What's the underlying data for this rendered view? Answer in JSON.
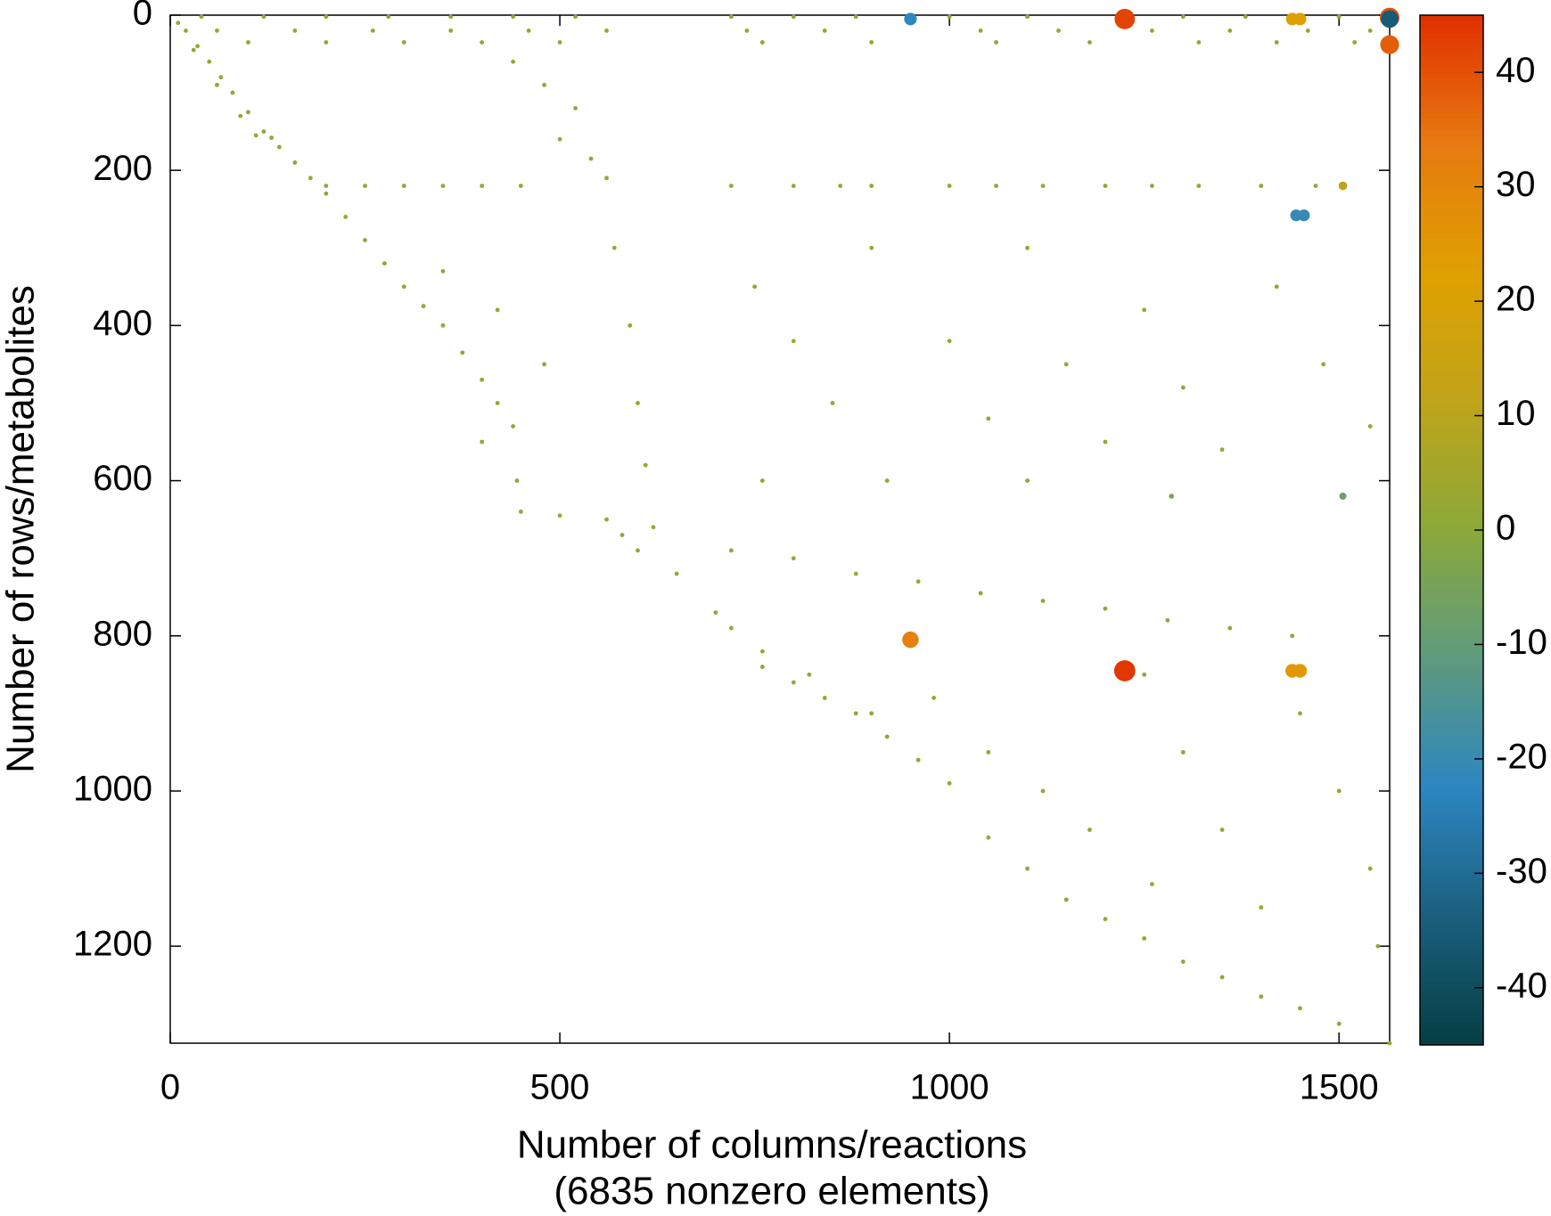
{
  "chart_data": {
    "type": "scatter",
    "xlabel": [
      "Number of columns/reactions",
      "(6835 nonzero elements)"
    ],
    "ylabel": "Number of rows/metabolites",
    "xlim": [
      0,
      1565
    ],
    "ylim": [
      1325,
      0
    ],
    "xticks": [
      0,
      500,
      1000,
      1500
    ],
    "yticks": [
      0,
      200,
      400,
      600,
      800,
      1000,
      1200
    ],
    "clim": [
      -45,
      45
    ],
    "cticks": [
      -40,
      -30,
      -20,
      -10,
      0,
      10,
      20,
      30,
      40
    ],
    "colormap": [
      "#063f44",
      "#1b5f7c",
      "#2c86c2",
      "#5e9a7e",
      "#8aa93a",
      "#c0a41a",
      "#e0a000",
      "#e77a10",
      "#e03000"
    ],
    "x": [
      20,
      50,
      80,
      120,
      160,
      200,
      250,
      300,
      350,
      400,
      440,
      450,
      560,
      580,
      650,
      720,
      800,
      880,
      960,
      1050,
      1150,
      1250,
      1350,
      1450,
      1565,
      10,
      35,
      65,
      100,
      140,
      180,
      225,
      275,
      325,
      375,
      420,
      445,
      500,
      600,
      700,
      760,
      840,
      920,
      1000,
      1100,
      1200,
      1300,
      1400,
      1500,
      30,
      60,
      90,
      110,
      130,
      40,
      120,
      200,
      280,
      360,
      440,
      520,
      60,
      160,
      260,
      360,
      460,
      560,
      100,
      200,
      300,
      400,
      500,
      720,
      800,
      880,
      1000,
      1100,
      1300,
      1380,
      1500,
      740,
      840,
      1040,
      1140,
      1260,
      1360,
      1460,
      1540,
      760,
      900,
      1060,
      1180,
      1320,
      1420,
      1520,
      440,
      480,
      520,
      500,
      540,
      560,
      570,
      590,
      600,
      610,
      620,
      200,
      250,
      300,
      350,
      400,
      450,
      720,
      800,
      860,
      900,
      1000,
      1060,
      1120,
      1200,
      1260,
      1320,
      1400,
      1470,
      300,
      350,
      420,
      480,
      400,
      750,
      800,
      850,
      900,
      920,
      1000,
      1050,
      1100,
      1150,
      1200,
      1250,
      1300,
      1350,
      1420,
      1480,
      1540,
      760,
      1100,
      720,
      800,
      880,
      960,
      1040,
      1120,
      1200,
      1280,
      1360,
      1440,
      760,
      820,
      900,
      980,
      1050,
      1120,
      1180,
      1250,
      1300,
      1350,
      1400,
      1450,
      1500,
      1540,
      1550,
      1260,
      950,
      1225,
      1440,
      1450,
      1565,
      1565,
      1565,
      1445,
      1455,
      950,
      1225,
      1440,
      1450,
      1285,
      1505,
      1505
    ],
    "y": [
      20,
      60,
      100,
      150,
      190,
      230,
      290,
      350,
      400,
      470,
      530,
      640,
      650,
      670,
      720,
      790,
      860,
      900,
      960,
      1060,
      1140,
      1190,
      1240,
      1280,
      1325,
      10,
      40,
      80,
      125,
      170,
      210,
      260,
      320,
      375,
      435,
      500,
      600,
      645,
      690,
      770,
      840,
      880,
      930,
      990,
      1100,
      1165,
      1220,
      1265,
      1300,
      45,
      90,
      130,
      155,
      158,
      2,
      2,
      2,
      2,
      2,
      2,
      2,
      20,
      20,
      20,
      20,
      20,
      20,
      35,
      35,
      35,
      35,
      35,
      2,
      2,
      2,
      2,
      2,
      2,
      2,
      2,
      20,
      20,
      20,
      20,
      20,
      20,
      20,
      20,
      35,
      35,
      35,
      35,
      35,
      35,
      35,
      60,
      90,
      120,
      160,
      185,
      210,
      300,
      400,
      500,
      580,
      660,
      220,
      220,
      220,
      220,
      220,
      220,
      220,
      220,
      220,
      220,
      220,
      220,
      220,
      220,
      220,
      220,
      220,
      220,
      350,
      330,
      380,
      450,
      550,
      350,
      420,
      500,
      300,
      600,
      420,
      520,
      300,
      450,
      550,
      380,
      480,
      560,
      350,
      450,
      530,
      600,
      600,
      690,
      700,
      720,
      730,
      745,
      755,
      765,
      780,
      790,
      800,
      820,
      850,
      900,
      880,
      950,
      1000,
      1050,
      850,
      950,
      1050,
      1150,
      900,
      1000,
      1100,
      1200,
      1120,
      5,
      5,
      5,
      5,
      3,
      5,
      38,
      258,
      258,
      805,
      845,
      845,
      845,
      620,
      620,
      220
    ],
    "c": [
      1,
      1,
      1,
      1,
      1,
      1,
      1,
      1,
      1,
      1,
      1,
      1,
      1,
      1,
      1,
      1,
      1,
      1,
      1,
      1,
      1,
      1,
      1,
      1,
      1,
      1,
      1,
      1,
      1,
      1,
      1,
      1,
      1,
      1,
      1,
      1,
      1,
      1,
      1,
      1,
      1,
      1,
      1,
      1,
      1,
      1,
      1,
      1,
      1,
      1,
      1,
      1,
      1,
      1,
      1,
      1,
      1,
      1,
      1,
      1,
      1,
      1,
      1,
      1,
      1,
      1,
      1,
      1,
      1,
      1,
      1,
      1,
      1,
      1,
      1,
      1,
      1,
      1,
      1,
      1,
      1,
      1,
      1,
      1,
      1,
      1,
      1,
      1,
      1,
      1,
      1,
      1,
      1,
      1,
      1,
      1,
      1,
      1,
      1,
      1,
      1,
      1,
      1,
      1,
      1,
      1,
      1,
      1,
      1,
      1,
      1,
      1,
      1,
      1,
      1,
      1,
      1,
      1,
      1,
      1,
      1,
      1,
      1,
      1,
      1,
      1,
      1,
      1,
      1,
      1,
      1,
      1,
      1,
      1,
      1,
      1,
      1,
      1,
      1,
      1,
      1,
      1,
      1,
      1,
      1,
      1,
      1,
      1,
      1,
      1,
      1,
      1,
      1,
      1,
      1,
      1,
      1,
      1,
      1,
      1,
      1,
      1,
      1,
      1,
      1,
      1,
      1,
      1,
      1,
      1,
      1,
      1,
      1,
      -22,
      42,
      22,
      22,
      40,
      -35,
      38,
      -20,
      -20,
      32,
      44,
      25,
      25,
      -3,
      -8,
      12
    ]
  }
}
